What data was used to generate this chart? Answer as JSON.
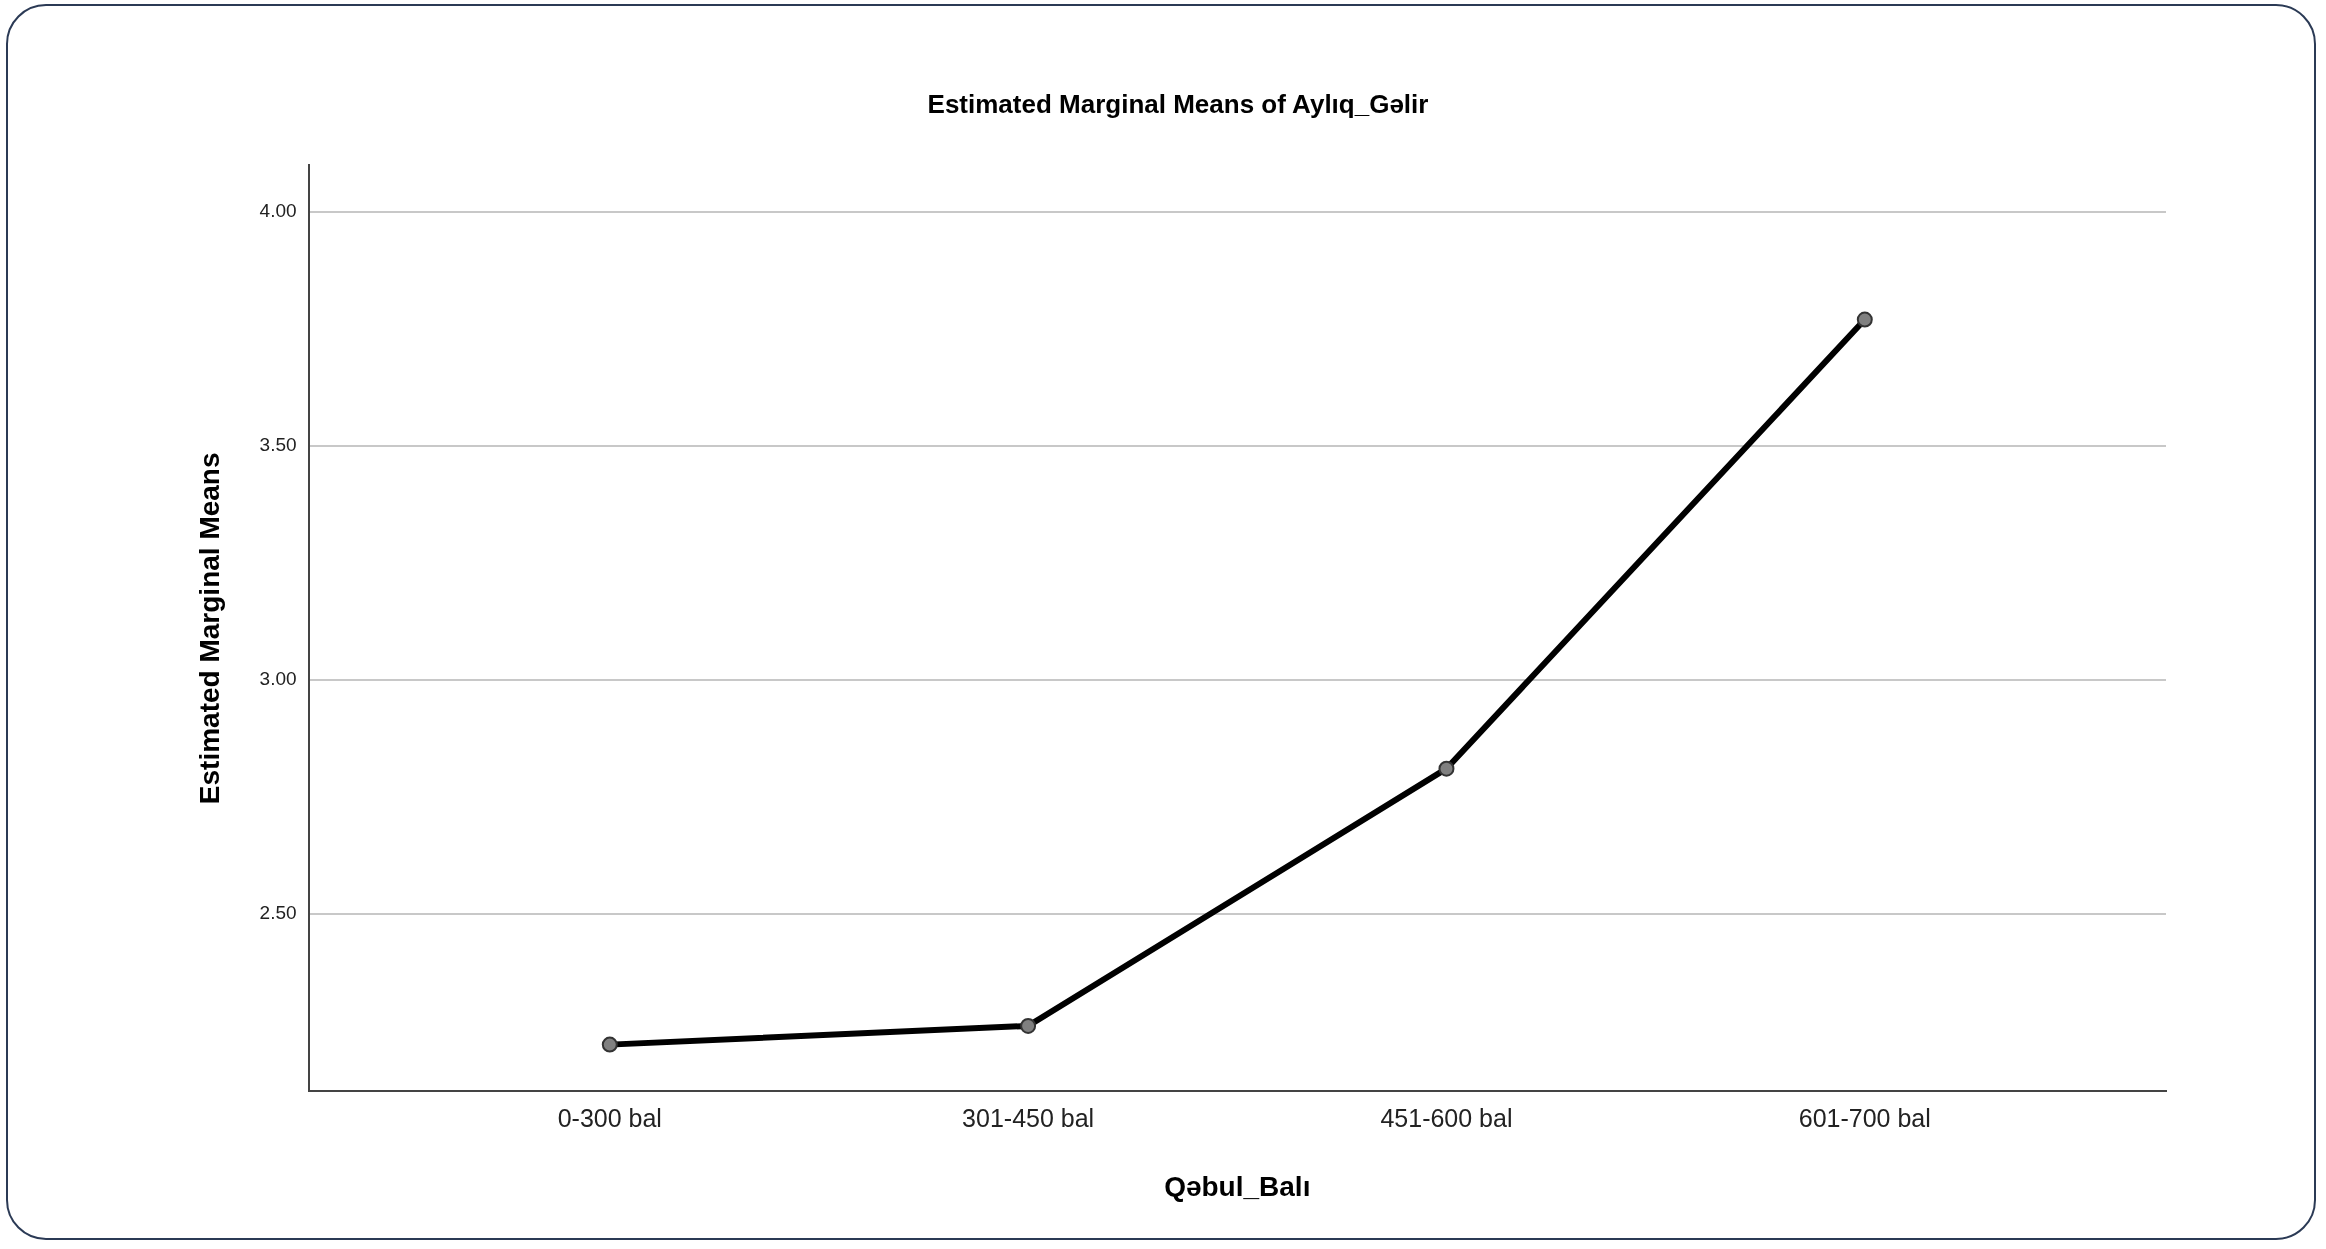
{
  "chart_data": {
    "type": "line",
    "title": "Estimated Marginal Means of Aylıq_Gəlir",
    "xlabel": "Qəbul_Balı",
    "ylabel": "Estimated Marginal Means",
    "categories": [
      "0-300 bal",
      "301-450 bal",
      "451-600 bal",
      "601-700 bal"
    ],
    "series": [
      {
        "color": "#000000",
        "values": [
          2.22,
          2.26,
          2.81,
          3.77
        ]
      }
    ],
    "ylim": [
      2.12,
      4.1
    ],
    "yticks": [
      {
        "value": 2.5,
        "label": "2.50"
      },
      {
        "value": 3,
        "label": "3.00"
      },
      {
        "value": 3.5,
        "label": "3.50"
      },
      {
        "value": 4,
        "label": "4.00"
      }
    ],
    "grid": "y",
    "legend": false,
    "marker": "circle",
    "line_style": "solid"
  }
}
